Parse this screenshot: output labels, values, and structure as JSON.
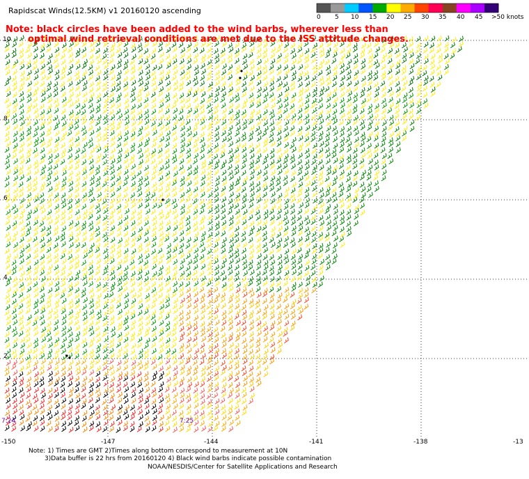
{
  "title": "Rapidscat Winds(12.5KM) v1 20160120 ascending",
  "note": {
    "line1": "Note: black circles have been added to the wind barbs, wherever less than",
    "line2": "optimal wind retrieval conditions are met due to the ISS attitude changes."
  },
  "speed_scale": {
    "labels": [
      "0",
      "5",
      "10",
      "15",
      "20",
      "25",
      "30",
      "35",
      "40",
      "45",
      ">50 knots"
    ],
    "colors": [
      "#555555",
      "#999999",
      "#00ccff",
      "#0055ff",
      "#00aa00",
      "#ffff00",
      "#ffaa00",
      "#ff4400",
      "#ff0055",
      "#884422",
      "#ff00ff",
      "#aa00ff",
      "#330077"
    ]
  },
  "y_labels": [
    "10",
    "8",
    "6",
    "4",
    "2"
  ],
  "x_labels": [
    "-150",
    "-147",
    "-144",
    "-141",
    "-138",
    "-13"
  ],
  "time_labels": [
    "7:24",
    "7:25"
  ],
  "footer": {
    "line1": "Note: 1) Times are GMT 2)Times along bottom correspond to measurement at 10N",
    "line2": "3)Data buffer is 22 hrs from 20160120 4) Black wind barbs indicate possible contamination",
    "line3": "NOAA/NESDIS/Center for Satellite Applications and Research"
  }
}
